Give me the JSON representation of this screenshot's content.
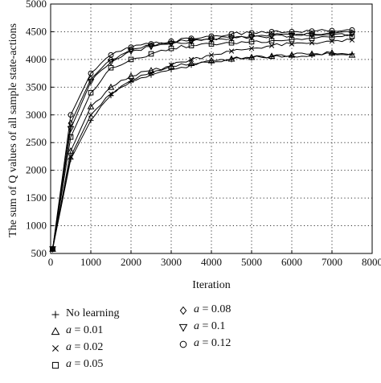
{
  "chart_data": {
    "type": "line",
    "title": "",
    "xlabel": "Iteration",
    "ylabel": "The sum of Q values of all sample state-actions",
    "xlim": [
      0,
      8000
    ],
    "ylim": [
      500,
      5000
    ],
    "x_ticks": [
      "0",
      "1000",
      "2000",
      "3000",
      "4000",
      "5000",
      "6000",
      "7000",
      "8000"
    ],
    "y_ticks": [
      "500",
      "1000",
      "1500",
      "2000",
      "2500",
      "3000",
      "3500",
      "4000",
      "4500",
      "5000"
    ],
    "grid": true,
    "grid_style": "dotted",
    "legend_position": "below",
    "x": [
      50,
      500,
      1000,
      1500,
      2000,
      2500,
      3000,
      3500,
      4000,
      4500,
      5000,
      5500,
      6000,
      6500,
      7000,
      7500
    ],
    "series": [
      {
        "name": "No learning",
        "symbol": "+",
        "marker": "plus",
        "values": [
          580,
          2200,
          2900,
          3350,
          3600,
          3720,
          3820,
          3900,
          3950,
          4000,
          4030,
          4050,
          4060,
          4080,
          4100,
          4100
        ]
      },
      {
        "name": "a = 0.01",
        "symbol": "△",
        "marker": "triangle-up",
        "values": [
          580,
          2350,
          3150,
          3500,
          3700,
          3800,
          3880,
          3930,
          3980,
          4010,
          4040,
          4060,
          4080,
          4100,
          4120,
          4080
        ]
      },
      {
        "name": "a = 0.02",
        "symbol": "×",
        "marker": "cross",
        "values": [
          580,
          2250,
          3000,
          3380,
          3620,
          3760,
          3900,
          4000,
          4080,
          4150,
          4200,
          4250,
          4280,
          4300,
          4330,
          4350
        ]
      },
      {
        "name": "a = 0.05",
        "symbol": "□",
        "marker": "square",
        "values": [
          580,
          2600,
          3400,
          3850,
          4000,
          4100,
          4200,
          4250,
          4280,
          4300,
          4320,
          4340,
          4360,
          4380,
          4400,
          4420
        ]
      },
      {
        "name": "a = 0.08",
        "symbol": "◇",
        "marker": "diamond",
        "values": [
          580,
          2850,
          3650,
          4000,
          4180,
          4250,
          4300,
          4350,
          4380,
          4400,
          4420,
          4440,
          4450,
          4460,
          4470,
          4480
        ]
      },
      {
        "name": "a = 0.1",
        "symbol": "▽",
        "marker": "triangle-down",
        "values": [
          580,
          2750,
          3600,
          3950,
          4150,
          4230,
          4280,
          4320,
          4350,
          4380,
          4400,
          4420,
          4430,
          4440,
          4450,
          4460
        ]
      },
      {
        "name": "a = 0.12",
        "symbol": "○",
        "marker": "circle",
        "values": [
          580,
          3000,
          3750,
          4080,
          4220,
          4280,
          4330,
          4380,
          4420,
          4460,
          4480,
          4500,
          4500,
          4510,
          4520,
          4530
        ]
      }
    ]
  }
}
